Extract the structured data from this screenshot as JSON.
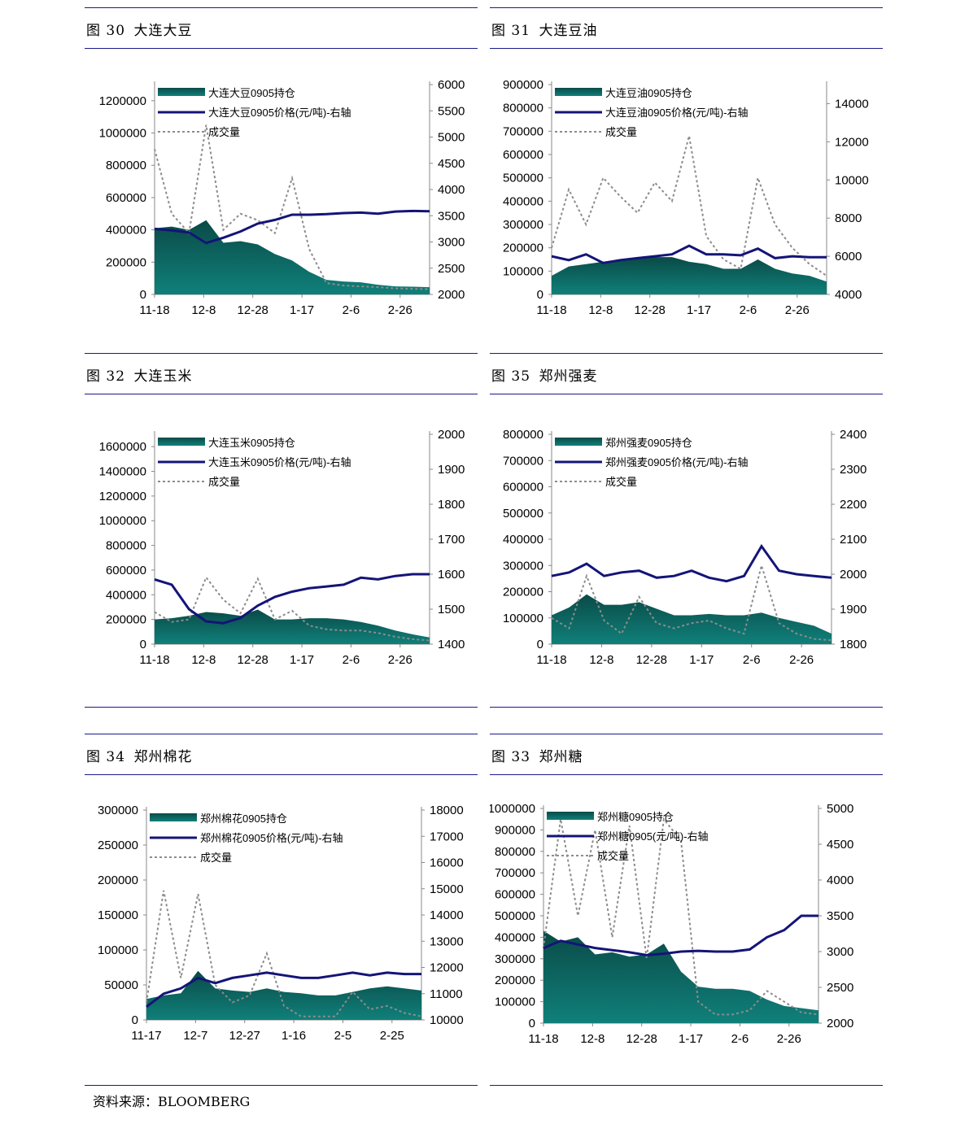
{
  "source": "资料来源：BLOOMBERG",
  "charts": [
    {
      "id": "c30",
      "fig_label": "图 30",
      "fig_title": "大连大豆",
      "left_ticks": [
        0,
        200000,
        400000,
        600000,
        800000,
        1000000,
        1200000
      ],
      "left_min": 0,
      "left_max": 1300000,
      "right_ticks": [
        2000,
        2500,
        3000,
        3500,
        4000,
        4500,
        5000,
        5500,
        6000
      ],
      "right_min": 2000,
      "right_max": 6000,
      "x_ticks": [
        "11-18",
        "12-8",
        "12-28",
        "1-17",
        "2-6",
        "2-26"
      ],
      "legend": [
        "大连大豆0905持仓",
        "大连大豆0905价格(元/吨)-右轴",
        "成交量"
      ]
    },
    {
      "id": "c31",
      "fig_label": "图 31",
      "fig_title": "大连豆油",
      "left_ticks": [
        0,
        100000,
        200000,
        300000,
        400000,
        500000,
        600000,
        700000,
        800000,
        900000
      ],
      "left_min": 0,
      "left_max": 900000,
      "right_ticks": [
        4000,
        6000,
        8000,
        10000,
        12000,
        14000
      ],
      "right_min": 4000,
      "right_max": 15000,
      "x_ticks": [
        "11-18",
        "12-8",
        "12-28",
        "1-17",
        "2-6",
        "2-26"
      ],
      "legend": [
        "大连豆油0905持仓",
        "大连豆油0905价格(元/吨)-右轴",
        "成交量"
      ]
    },
    {
      "id": "c32",
      "fig_label": "图 32",
      "fig_title": "大连玉米",
      "left_ticks": [
        0,
        200000,
        400000,
        600000,
        800000,
        1000000,
        1200000,
        1400000,
        1600000
      ],
      "left_min": 0,
      "left_max": 1700000,
      "right_ticks": [
        1400,
        1500,
        1600,
        1700,
        1800,
        1900,
        2000
      ],
      "right_min": 1400,
      "right_max": 2000,
      "x_ticks": [
        "11-18",
        "12-8",
        "12-28",
        "1-17",
        "2-6",
        "2-26"
      ],
      "legend": [
        "大连玉米0905持仓",
        "大连玉米0905价格(元/吨)-右轴",
        "成交量"
      ]
    },
    {
      "id": "c35",
      "fig_label": "图 35",
      "fig_title": "郑州强麦",
      "left_ticks": [
        0,
        100000,
        200000,
        300000,
        400000,
        500000,
        600000,
        700000,
        800000
      ],
      "left_min": 0,
      "left_max": 800000,
      "right_ticks": [
        1800,
        1900,
        2000,
        2100,
        2200,
        2300,
        2400
      ],
      "right_min": 1800,
      "right_max": 2400,
      "x_ticks": [
        "11-18",
        "12-8",
        "12-28",
        "1-17",
        "2-6",
        "2-26"
      ],
      "legend": [
        "郑州强麦0905持仓",
        "郑州强麦0905价格(元/吨)-右轴",
        "成交量"
      ]
    },
    {
      "id": "c34",
      "fig_label": "图 34",
      "fig_title": "郑州棉花",
      "left_ticks": [
        0,
        50000,
        100000,
        150000,
        200000,
        250000,
        300000
      ],
      "left_min": 0,
      "left_max": 300000,
      "right_ticks": [
        10000,
        11000,
        12000,
        13000,
        14000,
        15000,
        16000,
        17000,
        18000
      ],
      "right_min": 10000,
      "right_max": 18000,
      "x_ticks": [
        "11-17",
        "12-7",
        "12-27",
        "1-16",
        "2-5",
        "2-25"
      ],
      "legend": [
        "郑州棉花0905持仓",
        "郑州棉花0905价格(元/吨)-右轴",
        "成交量"
      ]
    },
    {
      "id": "c33",
      "fig_label": "图 33",
      "fig_title": "郑州糖",
      "left_ticks": [
        0,
        100000,
        200000,
        300000,
        400000,
        500000,
        600000,
        700000,
        800000,
        900000,
        1000000
      ],
      "left_min": 0,
      "left_max": 1000000,
      "right_ticks": [
        2000,
        2500,
        3000,
        3500,
        4000,
        4500,
        5000
      ],
      "right_min": 2000,
      "right_max": 5000,
      "x_ticks": [
        "11-18",
        "12-8",
        "12-28",
        "1-17",
        "2-6",
        "2-26"
      ],
      "legend": [
        "郑州糖0905持仓",
        "郑州糖0905(元/吨)-右轴",
        "成交量"
      ]
    }
  ],
  "colors": {
    "rule": "#1a1a8c",
    "area_dark": "#0a4a47",
    "area_light": "#10807a",
    "price": "#141478",
    "volume": "#8c8c8c"
  },
  "chart_data": [
    {
      "type": "area",
      "chart": "大连大豆",
      "x": [
        "11-18",
        "11-25",
        "12-2",
        "12-8",
        "12-15",
        "12-22",
        "12-28",
        "1-4",
        "1-10",
        "1-17",
        "1-24",
        "1-31",
        "2-6",
        "2-13",
        "2-20",
        "2-26",
        "3-5"
      ],
      "series": [
        {
          "name": "大连大豆0905持仓",
          "axis": "left",
          "values": [
            410000,
            420000,
            400000,
            460000,
            320000,
            330000,
            310000,
            250000,
            210000,
            140000,
            90000,
            80000,
            75000,
            60000,
            50000,
            48000,
            45000
          ]
        },
        {
          "name": "大连大豆0905价格(元/吨)-右轴",
          "axis": "right",
          "values": [
            3250,
            3220,
            3180,
            2980,
            3080,
            3200,
            3350,
            3420,
            3520,
            3520,
            3530,
            3550,
            3560,
            3540,
            3580,
            3590,
            3585
          ]
        },
        {
          "name": "成交量",
          "axis": "left",
          "values": [
            900000,
            500000,
            380000,
            1050000,
            400000,
            500000,
            460000,
            380000,
            720000,
            280000,
            70000,
            55000,
            50000,
            45000,
            38000,
            35000,
            32000
          ]
        }
      ]
    },
    {
      "type": "area",
      "chart": "大连豆油",
      "x": [
        "11-18",
        "11-25",
        "12-2",
        "12-8",
        "12-15",
        "12-22",
        "12-28",
        "1-4",
        "1-10",
        "1-17",
        "1-24",
        "1-31",
        "2-6",
        "2-13",
        "2-20",
        "2-26",
        "3-5"
      ],
      "series": [
        {
          "name": "大连豆油0905持仓",
          "axis": "left",
          "values": [
            80000,
            120000,
            130000,
            140000,
            150000,
            155000,
            160000,
            160000,
            140000,
            130000,
            110000,
            110000,
            150000,
            110000,
            90000,
            80000,
            55000
          ]
        },
        {
          "name": "大连豆油0905价格(元/吨)-右轴",
          "axis": "right",
          "values": [
            6000,
            5800,
            6100,
            5650,
            5800,
            5900,
            6000,
            6100,
            6550,
            6100,
            6100,
            6050,
            6400,
            5900,
            6000,
            5950,
            5950
          ]
        },
        {
          "name": "成交量",
          "axis": "left",
          "values": [
            200000,
            450000,
            300000,
            500000,
            420000,
            350000,
            480000,
            400000,
            680000,
            250000,
            150000,
            110000,
            500000,
            300000,
            200000,
            130000,
            80000
          ]
        }
      ]
    },
    {
      "type": "area",
      "chart": "大连玉米",
      "x": [
        "11-18",
        "11-25",
        "12-2",
        "12-8",
        "12-15",
        "12-22",
        "12-28",
        "1-4",
        "1-10",
        "1-17",
        "1-24",
        "1-31",
        "2-6",
        "2-13",
        "2-20",
        "2-26",
        "3-5"
      ],
      "series": [
        {
          "name": "大连玉米0905持仓",
          "axis": "left",
          "values": [
            200000,
            210000,
            230000,
            260000,
            250000,
            230000,
            280000,
            200000,
            200000,
            210000,
            210000,
            200000,
            180000,
            150000,
            110000,
            80000,
            55000
          ]
        },
        {
          "name": "大连玉米0905价格(元/吨)-右轴",
          "axis": "right",
          "values": [
            1585,
            1570,
            1500,
            1465,
            1460,
            1475,
            1510,
            1535,
            1550,
            1560,
            1565,
            1570,
            1590,
            1585,
            1595,
            1600,
            1600
          ]
        },
        {
          "name": "成交量",
          "axis": "left",
          "values": [
            260000,
            180000,
            200000,
            540000,
            360000,
            250000,
            530000,
            200000,
            270000,
            150000,
            120000,
            110000,
            110000,
            90000,
            60000,
            40000,
            30000
          ]
        }
      ]
    },
    {
      "type": "area",
      "chart": "郑州强麦",
      "x": [
        "11-18",
        "11-25",
        "12-2",
        "12-8",
        "12-15",
        "12-22",
        "12-28",
        "1-4",
        "1-10",
        "1-17",
        "1-24",
        "1-31",
        "2-6",
        "2-13",
        "2-20",
        "2-26",
        "3-5"
      ],
      "series": [
        {
          "name": "郑州强麦0905持仓",
          "axis": "left",
          "values": [
            110000,
            140000,
            190000,
            150000,
            150000,
            160000,
            135000,
            110000,
            110000,
            115000,
            110000,
            110000,
            120000,
            100000,
            85000,
            70000,
            40000
          ]
        },
        {
          "name": "郑州强麦0905价格(元/吨)-右轴",
          "axis": "right",
          "values": [
            1995,
            2005,
            2030,
            1995,
            2005,
            2010,
            1990,
            1995,
            2010,
            1990,
            1980,
            1995,
            2080,
            2010,
            2000,
            1995,
            1990
          ]
        },
        {
          "name": "成交量",
          "axis": "left",
          "values": [
            100000,
            60000,
            260000,
            90000,
            40000,
            180000,
            80000,
            60000,
            80000,
            90000,
            60000,
            40000,
            300000,
            80000,
            40000,
            20000,
            15000
          ]
        }
      ]
    },
    {
      "type": "area",
      "chart": "郑州棉花",
      "x": [
        "11-17",
        "11-24",
        "12-1",
        "12-7",
        "12-14",
        "12-21",
        "12-27",
        "1-3",
        "1-9",
        "1-16",
        "1-23",
        "1-30",
        "2-5",
        "2-12",
        "2-19",
        "2-25",
        "3-4"
      ],
      "series": [
        {
          "name": "郑州棉花0905持仓",
          "axis": "left",
          "values": [
            30000,
            35000,
            38000,
            70000,
            45000,
            42000,
            40000,
            45000,
            40000,
            38000,
            35000,
            35000,
            40000,
            45000,
            48000,
            45000,
            42000
          ]
        },
        {
          "name": "郑州棉花0905价格(元/吨)-右轴",
          "axis": "right",
          "values": [
            10500,
            11000,
            11200,
            11600,
            11400,
            11600,
            11700,
            11800,
            11700,
            11600,
            11600,
            11700,
            11800,
            11700,
            11800,
            11750,
            11750
          ]
        },
        {
          "name": "成交量",
          "axis": "left",
          "values": [
            25000,
            185000,
            60000,
            180000,
            50000,
            25000,
            35000,
            95000,
            20000,
            5000,
            5000,
            5000,
            40000,
            15000,
            20000,
            10000,
            5000
          ]
        }
      ]
    },
    {
      "type": "area",
      "chart": "郑州糖",
      "x": [
        "11-18",
        "11-25",
        "12-2",
        "12-8",
        "12-15",
        "12-22",
        "12-28",
        "1-4",
        "1-10",
        "1-17",
        "1-24",
        "1-31",
        "2-6",
        "2-13",
        "2-20",
        "2-26",
        "3-5"
      ],
      "series": [
        {
          "name": "郑州糖0905持仓",
          "axis": "left",
          "values": [
            430000,
            380000,
            400000,
            320000,
            330000,
            310000,
            320000,
            370000,
            240000,
            170000,
            160000,
            160000,
            150000,
            110000,
            80000,
            70000,
            60000
          ]
        },
        {
          "name": "郑州糖0905(元/吨)-右轴",
          "axis": "right",
          "values": [
            3050,
            3150,
            3100,
            3050,
            3020,
            2990,
            2950,
            2970,
            3000,
            3010,
            3000,
            3000,
            3030,
            3200,
            3300,
            3500,
            3500
          ]
        },
        {
          "name": "成交量",
          "axis": "left",
          "values": [
            350000,
            950000,
            500000,
            900000,
            400000,
            920000,
            300000,
            950000,
            850000,
            100000,
            40000,
            40000,
            60000,
            150000,
            100000,
            50000,
            40000
          ]
        }
      ]
    }
  ]
}
